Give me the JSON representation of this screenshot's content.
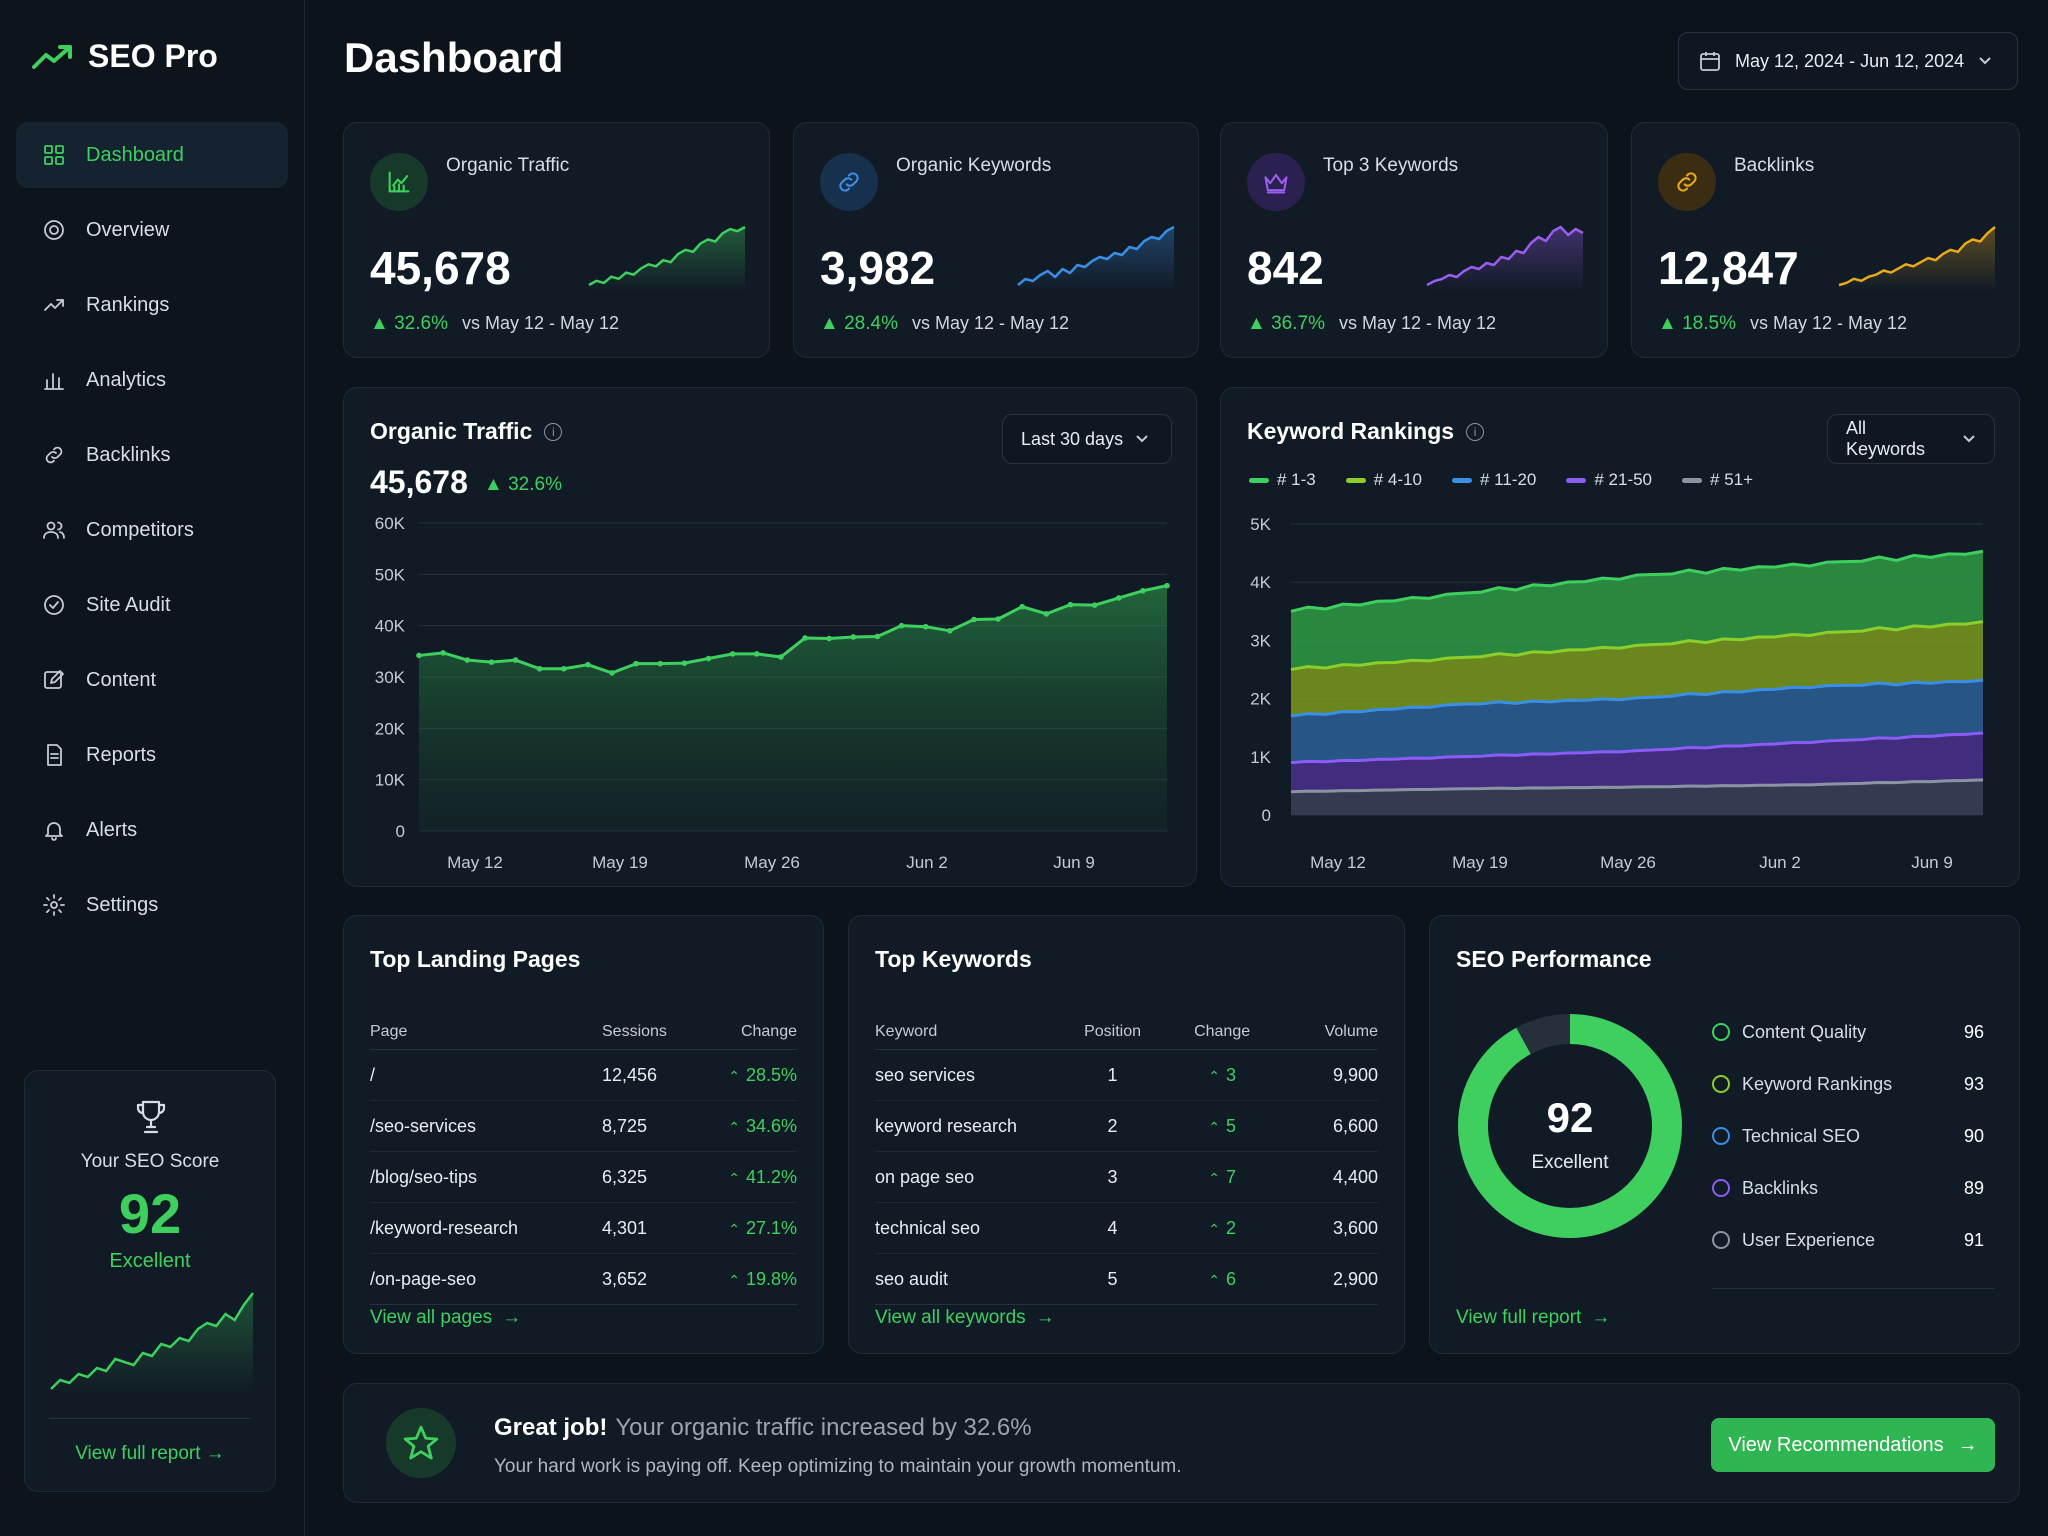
{
  "app": {
    "name": "SEO Pro"
  },
  "sidebar": {
    "items": [
      {
        "label": "Dashboard",
        "icon": "grid-icon",
        "active": true
      },
      {
        "label": "Overview",
        "icon": "target-icon"
      },
      {
        "label": "Rankings",
        "icon": "trend-icon"
      },
      {
        "label": "Analytics",
        "icon": "bar-chart-icon"
      },
      {
        "label": "Backlinks",
        "icon": "link-icon"
      },
      {
        "label": "Competitors",
        "icon": "users-icon"
      },
      {
        "label": "Site Audit",
        "icon": "check-circle-icon"
      },
      {
        "label": "Content",
        "icon": "edit-icon"
      },
      {
        "label": "Reports",
        "icon": "document-icon"
      },
      {
        "label": "Alerts",
        "icon": "bell-icon"
      },
      {
        "label": "Settings",
        "icon": "gear-icon"
      }
    ],
    "score_card": {
      "title": "Your SEO Score",
      "score": "92",
      "rating": "Excellent",
      "link": "View full report"
    }
  },
  "header": {
    "title": "Dashboard",
    "date_range": "May 12, 2024 - Jun 12, 2024"
  },
  "kpis": [
    {
      "label": "Organic Traffic",
      "value": "45,678",
      "change": "32.6%",
      "compare": "vs May 12 - May 12",
      "color": "#3ecf5f",
      "icon": "chart-icon",
      "spark": [
        2,
        4,
        3,
        6,
        5,
        8,
        7,
        10,
        12,
        11,
        14,
        13,
        17,
        19,
        18,
        22,
        24,
        23,
        27,
        29,
        28,
        30
      ]
    },
    {
      "label": "Organic Keywords",
      "value": "3,982",
      "change": "28.4%",
      "compare": "vs May 12 - May 12",
      "color": "#3b8ee6",
      "icon": "link-icon",
      "spark": [
        2,
        5,
        4,
        7,
        9,
        6,
        10,
        8,
        12,
        11,
        14,
        16,
        15,
        18,
        17,
        21,
        20,
        24,
        26,
        25,
        29,
        31
      ]
    },
    {
      "label": "Top 3 Keywords",
      "value": "842",
      "change": "36.7%",
      "compare": "vs May 12 - May 12",
      "color": "#9b5cf0",
      "icon": "crown-icon",
      "spark": [
        2,
        4,
        5,
        7,
        6,
        9,
        11,
        10,
        13,
        12,
        16,
        15,
        19,
        18,
        23,
        26,
        24,
        29,
        31,
        27,
        30,
        28
      ]
    },
    {
      "label": "Backlinks",
      "value": "12,847",
      "change": "18.5%",
      "compare": "vs May 12 - May 12",
      "color": "#e9a91c",
      "icon": "chain-icon",
      "spark": [
        2,
        3,
        5,
        4,
        6,
        7,
        9,
        8,
        10,
        12,
        11,
        13,
        15,
        14,
        17,
        19,
        18,
        22,
        24,
        23,
        27,
        30
      ]
    }
  ],
  "traffic_chart": {
    "title": "Organic Traffic",
    "value": "45,678",
    "change": "32.6%",
    "range": "Last 30 days",
    "chart_data": {
      "type": "area",
      "x_ticks": [
        "May 12",
        "May 19",
        "May 26",
        "Jun 2",
        "Jun 9"
      ],
      "y_ticks": [
        "60K",
        "50K",
        "40K",
        "30K",
        "20K",
        "10K",
        "0"
      ],
      "ylim": [
        0,
        60000
      ],
      "values": [
        34200,
        34700,
        33300,
        32900,
        33300,
        31600,
        31600,
        32400,
        30800,
        32600,
        32600,
        32700,
        33600,
        34500,
        34500,
        33900,
        37600,
        37500,
        37800,
        37900,
        40000,
        39800,
        39000,
        41200,
        41300,
        43700,
        42300,
        44100,
        44000,
        45400,
        46800,
        47800
      ]
    }
  },
  "rankings_chart": {
    "title": "Keyword Rankings",
    "filter": "All Keywords",
    "chart_data": {
      "type": "area",
      "x_ticks": [
        "May 12",
        "May 19",
        "May 26",
        "Jun 2",
        "Jun 9"
      ],
      "y_ticks": [
        "5K",
        "4K",
        "3K",
        "2K",
        "1K",
        "0"
      ],
      "ylim": [
        0,
        5000
      ],
      "series": [
        {
          "name": "# 1-3",
          "color": "#3ecf5f",
          "values": [
            3500,
            3800,
            4100,
            4300,
            4500
          ]
        },
        {
          "name": "# 4-10",
          "color": "#8ccf2a",
          "values": [
            2500,
            2700,
            2900,
            3100,
            3300
          ]
        },
        {
          "name": "# 11-20",
          "color": "#3b8ee6",
          "values": [
            1700,
            1900,
            2000,
            2200,
            2300
          ]
        },
        {
          "name": "# 21-50",
          "color": "#8b5cf6",
          "values": [
            900,
            1000,
            1100,
            1250,
            1400
          ]
        },
        {
          "name": "# 51+",
          "color": "#8b94a3",
          "values": [
            400,
            450,
            480,
            520,
            600
          ]
        }
      ]
    }
  },
  "landing_pages": {
    "title": "Top Landing Pages",
    "columns": [
      "Page",
      "Sessions",
      "Change"
    ],
    "rows": [
      [
        "/",
        "12,456",
        "28.5%"
      ],
      [
        "/seo-services",
        "8,725",
        "34.6%"
      ],
      [
        "/blog/seo-tips",
        "6,325",
        "41.2%"
      ],
      [
        "/keyword-research",
        "4,301",
        "27.1%"
      ],
      [
        "/on-page-seo",
        "3,652",
        "19.8%"
      ]
    ],
    "link": "View all pages"
  },
  "top_keywords": {
    "title": "Top Keywords",
    "columns": [
      "Keyword",
      "Position",
      "Change",
      "Volume"
    ],
    "rows": [
      [
        "seo services",
        "1",
        "3",
        "9,900"
      ],
      [
        "keyword research",
        "2",
        "5",
        "6,600"
      ],
      [
        "on page seo",
        "3",
        "7",
        "4,400"
      ],
      [
        "technical seo",
        "4",
        "2",
        "3,600"
      ],
      [
        "seo audit",
        "5",
        "6",
        "2,900"
      ]
    ],
    "link": "View all keywords"
  },
  "performance": {
    "title": "SEO Performance",
    "score": "92",
    "rating": "Excellent",
    "score_fraction": 0.92,
    "items": [
      {
        "label": "Content Quality",
        "value": "96",
        "color": "#3ecf5f"
      },
      {
        "label": "Keyword Rankings",
        "value": "93",
        "color": "#8ccf2a"
      },
      {
        "label": "Technical SEO",
        "value": "90",
        "color": "#3b8ee6"
      },
      {
        "label": "Backlinks",
        "value": "89",
        "color": "#8b5cf6"
      },
      {
        "label": "User Experience",
        "value": "91",
        "color": "#8b94a3"
      }
    ],
    "link": "View full report"
  },
  "banner": {
    "title": "Great job!",
    "highlight": "Your organic traffic increased by 32.6%",
    "subtitle": "Your hard work is paying off. Keep optimizing to maintain your growth momentum.",
    "button": "View Recommendations"
  }
}
